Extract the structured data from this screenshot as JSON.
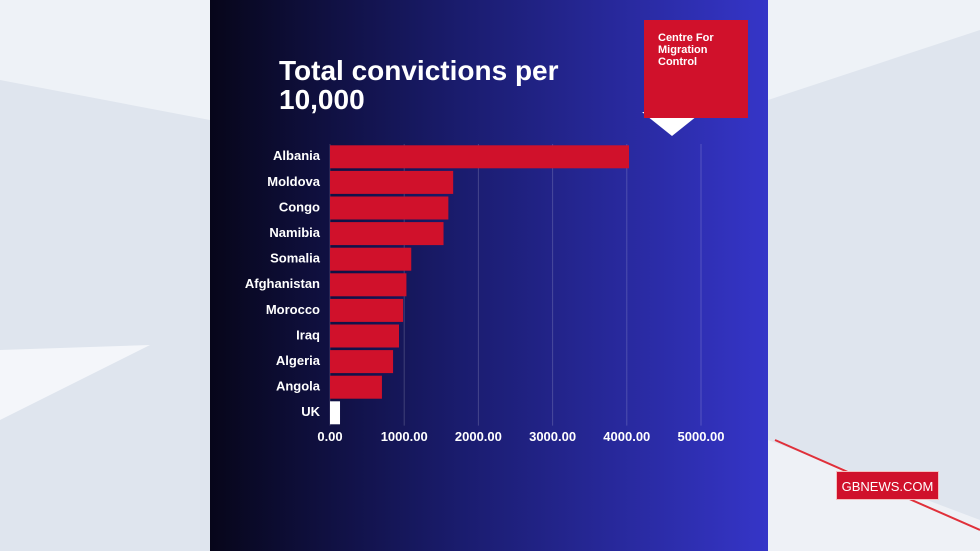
{
  "chart_data": {
    "type": "barh",
    "title": "Total convictions per 10,000",
    "categories": [
      "Albania",
      "Moldova",
      "Congo",
      "Namibia",
      "Somalia",
      "Afghanistan",
      "Morocco",
      "Iraq",
      "Algeria",
      "Angola",
      "UK"
    ],
    "values": [
      4030,
      1660,
      1595,
      1530,
      1095,
      1030,
      985,
      930,
      850,
      700,
      135
    ],
    "colors": [
      "#d0112b",
      "#d0112b",
      "#d0112b",
      "#d0112b",
      "#d0112b",
      "#d0112b",
      "#d0112b",
      "#d0112b",
      "#d0112b",
      "#d0112b",
      "#ffffff"
    ],
    "xlim": [
      0,
      5000
    ],
    "xticks": [
      {
        "value": 0,
        "label": "0.00"
      },
      {
        "value": 1000,
        "label": "1000.00"
      },
      {
        "value": 2000,
        "label": "2000.00"
      },
      {
        "value": 3000,
        "label": "3000.00"
      },
      {
        "value": 4000,
        "label": "4000.00"
      },
      {
        "value": 5000,
        "label": "5000.00"
      }
    ],
    "grid": true
  },
  "logo": "Centre For Migration Control",
  "watermark": "GBNEWS.COM"
}
